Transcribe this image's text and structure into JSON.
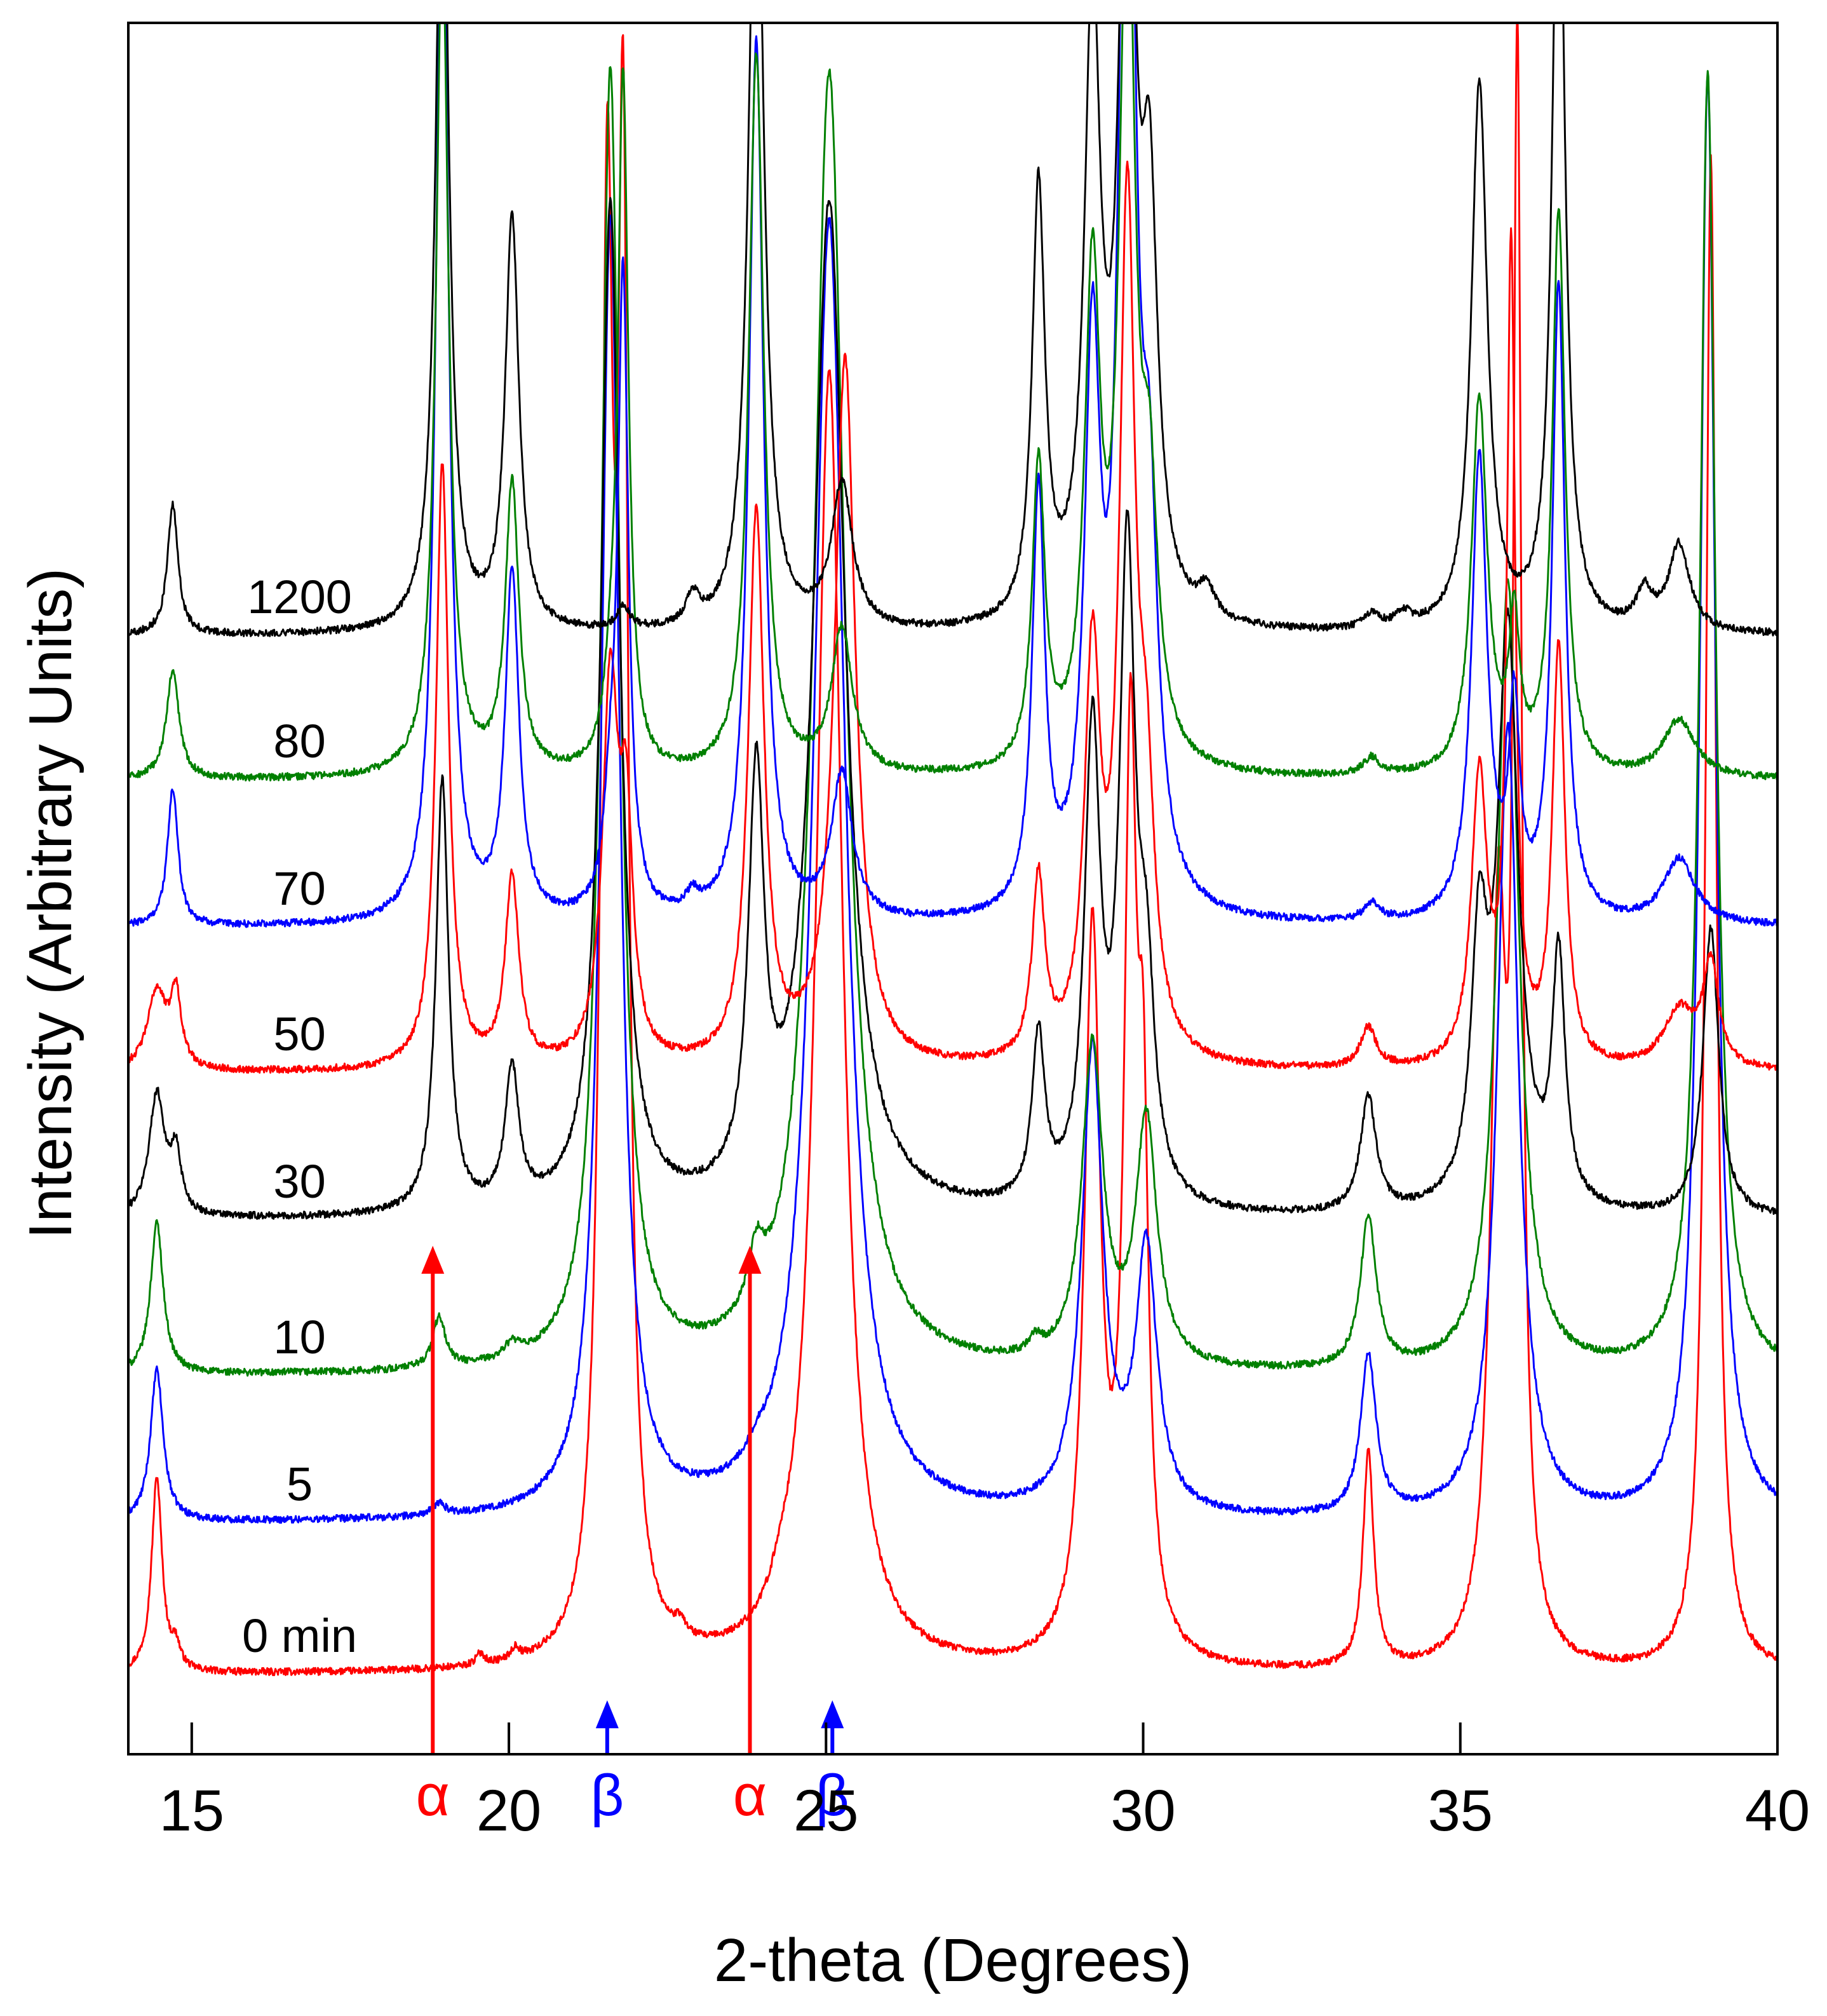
{
  "chart_data": {
    "type": "line",
    "title": "",
    "xlabel": "2-theta (Degrees)",
    "ylabel": "Intensity (Arbitrary Units)",
    "xlim": [
      14,
      40
    ],
    "ylim": [
      0,
      12
    ],
    "xticks": [
      15,
      20,
      25,
      30,
      35,
      40
    ],
    "grid": false,
    "note": "Stacked XRD patterns; each trace is vertically offset. Peak heights are in arbitrary units above each trace's baseline.",
    "series": [
      {
        "name": "0 min",
        "label": "0 min",
        "color": "#ff0000",
        "offset": 0.55,
        "peaks": [
          {
            "x": 14.45,
            "h": 1.35,
            "w": 0.1
          },
          {
            "x": 14.75,
            "h": 0.15,
            "w": 0.08
          },
          {
            "x": 19.55,
            "h": 0.08,
            "w": 0.08
          },
          {
            "x": 20.1,
            "h": 0.08,
            "w": 0.08
          },
          {
            "x": 21.55,
            "h": 9.5,
            "w": 0.12
          },
          {
            "x": 21.8,
            "h": 9.5,
            "w": 0.1
          },
          {
            "x": 22.7,
            "h": 0.1,
            "w": 0.12
          },
          {
            "x": 24.3,
            "h": 0.15,
            "w": 0.2
          },
          {
            "x": 25.05,
            "h": 9.0,
            "w": 0.25
          },
          {
            "x": 29.2,
            "h": 5.0,
            "w": 0.15
          },
          {
            "x": 29.8,
            "h": 6.0,
            "w": 0.12
          },
          {
            "x": 30.0,
            "h": 3.0,
            "w": 0.1
          },
          {
            "x": 33.55,
            "h": 1.5,
            "w": 0.1
          },
          {
            "x": 35.6,
            "h": 5.0,
            "w": 0.15
          },
          {
            "x": 35.9,
            "h": 10.5,
            "w": 0.08
          },
          {
            "x": 38.95,
            "h": 10.5,
            "w": 0.1
          }
        ]
      },
      {
        "name": "5",
        "label": "5",
        "color": "#0000ff",
        "offset": 1.6,
        "peaks": [
          {
            "x": 14.45,
            "h": 1.05,
            "w": 0.12
          },
          {
            "x": 18.9,
            "h": 0.08,
            "w": 0.12
          },
          {
            "x": 21.6,
            "h": 9.0,
            "w": 0.18
          },
          {
            "x": 23.9,
            "h": 0.08,
            "w": 0.15
          },
          {
            "x": 25.05,
            "h": 9.0,
            "w": 0.3
          },
          {
            "x": 29.2,
            "h": 3.2,
            "w": 0.2
          },
          {
            "x": 30.05,
            "h": 1.8,
            "w": 0.2
          },
          {
            "x": 33.55,
            "h": 1.1,
            "w": 0.15
          },
          {
            "x": 35.75,
            "h": 5.5,
            "w": 0.2
          },
          {
            "x": 38.9,
            "h": 10.0,
            "w": 0.15
          }
        ]
      },
      {
        "name": "10",
        "label": "10",
        "color": "#008000",
        "offset": 2.62,
        "peaks": [
          {
            "x": 14.45,
            "h": 1.05,
            "w": 0.12
          },
          {
            "x": 18.9,
            "h": 0.35,
            "w": 0.12
          },
          {
            "x": 20.05,
            "h": 0.1,
            "w": 0.15
          },
          {
            "x": 21.6,
            "h": 9.0,
            "w": 0.18
          },
          {
            "x": 23.9,
            "h": 0.4,
            "w": 0.15
          },
          {
            "x": 25.05,
            "h": 9.0,
            "w": 0.3
          },
          {
            "x": 28.3,
            "h": 0.1,
            "w": 0.12
          },
          {
            "x": 29.2,
            "h": 2.2,
            "w": 0.2
          },
          {
            "x": 30.05,
            "h": 1.7,
            "w": 0.2
          },
          {
            "x": 33.55,
            "h": 1.05,
            "w": 0.15
          },
          {
            "x": 35.75,
            "h": 5.5,
            "w": 0.2
          },
          {
            "x": 38.9,
            "h": 9.0,
            "w": 0.15
          }
        ]
      },
      {
        "name": "30",
        "label": "30",
        "color": "#000000",
        "offset": 3.7,
        "peaks": [
          {
            "x": 14.45,
            "h": 0.85,
            "w": 0.15
          },
          {
            "x": 14.75,
            "h": 0.4,
            "w": 0.1
          },
          {
            "x": 18.95,
            "h": 3.0,
            "w": 0.12
          },
          {
            "x": 20.05,
            "h": 0.95,
            "w": 0.13
          },
          {
            "x": 21.6,
            "h": 7.0,
            "w": 0.18
          },
          {
            "x": 23.9,
            "h": 2.8,
            "w": 0.15
          },
          {
            "x": 25.05,
            "h": 7.0,
            "w": 0.3
          },
          {
            "x": 28.35,
            "h": 1.15,
            "w": 0.12
          },
          {
            "x": 29.2,
            "h": 3.2,
            "w": 0.15
          },
          {
            "x": 29.75,
            "h": 4.4,
            "w": 0.15
          },
          {
            "x": 30.05,
            "h": 1.3,
            "w": 0.15
          },
          {
            "x": 33.55,
            "h": 0.8,
            "w": 0.15
          },
          {
            "x": 35.3,
            "h": 1.7,
            "w": 0.15
          },
          {
            "x": 35.75,
            "h": 4.0,
            "w": 0.2
          },
          {
            "x": 36.55,
            "h": 1.7,
            "w": 0.12
          },
          {
            "x": 38.95,
            "h": 2.0,
            "w": 0.15
          }
        ]
      },
      {
        "name": "50",
        "label": "50",
        "color": "#ff0000",
        "offset": 4.72,
        "peaks": [
          {
            "x": 14.45,
            "h": 0.55,
            "w": 0.18
          },
          {
            "x": 14.75,
            "h": 0.5,
            "w": 0.1
          },
          {
            "x": 18.95,
            "h": 4.2,
            "w": 0.12
          },
          {
            "x": 20.05,
            "h": 1.3,
            "w": 0.13
          },
          {
            "x": 21.6,
            "h": 2.6,
            "w": 0.15
          },
          {
            "x": 21.85,
            "h": 1.5,
            "w": 0.12
          },
          {
            "x": 23.9,
            "h": 3.8,
            "w": 0.15
          },
          {
            "x": 25.3,
            "h": 4.9,
            "w": 0.2
          },
          {
            "x": 28.35,
            "h": 1.25,
            "w": 0.12
          },
          {
            "x": 29.2,
            "h": 2.7,
            "w": 0.15
          },
          {
            "x": 29.75,
            "h": 5.8,
            "w": 0.15
          },
          {
            "x": 30.05,
            "h": 1.5,
            "w": 0.15
          },
          {
            "x": 33.55,
            "h": 0.28,
            "w": 0.15
          },
          {
            "x": 35.3,
            "h": 2.0,
            "w": 0.15
          },
          {
            "x": 35.8,
            "h": 5.6,
            "w": 0.08
          },
          {
            "x": 36.55,
            "h": 2.9,
            "w": 0.12
          },
          {
            "x": 38.45,
            "h": 0.4,
            "w": 0.3
          },
          {
            "x": 38.95,
            "h": 0.7,
            "w": 0.15
          }
        ]
      },
      {
        "name": "70",
        "label": "70",
        "color": "#0000ff",
        "offset": 5.73,
        "peaks": [
          {
            "x": 14.7,
            "h": 0.95,
            "w": 0.1
          },
          {
            "x": 18.95,
            "h": 7.5,
            "w": 0.12
          },
          {
            "x": 20.05,
            "h": 2.4,
            "w": 0.13
          },
          {
            "x": 21.6,
            "h": 0.6,
            "w": 0.12
          },
          {
            "x": 21.8,
            "h": 4.4,
            "w": 0.1
          },
          {
            "x": 22.9,
            "h": 0.12,
            "w": 0.12
          },
          {
            "x": 23.9,
            "h": 6.1,
            "w": 0.14
          },
          {
            "x": 25.25,
            "h": 1.0,
            "w": 0.2
          },
          {
            "x": 28.35,
            "h": 2.9,
            "w": 0.12
          },
          {
            "x": 29.2,
            "h": 3.7,
            "w": 0.15
          },
          {
            "x": 29.75,
            "h": 9.0,
            "w": 0.15
          },
          {
            "x": 30.1,
            "h": 2.2,
            "w": 0.15
          },
          {
            "x": 33.6,
            "h": 0.12,
            "w": 0.15
          },
          {
            "x": 35.3,
            "h": 3.2,
            "w": 0.15
          },
          {
            "x": 35.85,
            "h": 1.4,
            "w": 0.1
          },
          {
            "x": 36.55,
            "h": 4.4,
            "w": 0.12
          },
          {
            "x": 38.45,
            "h": 0.45,
            "w": 0.3
          }
        ]
      },
      {
        "name": "80",
        "label": "80",
        "color": "#008000",
        "offset": 6.75,
        "peaks": [
          {
            "x": 14.7,
            "h": 0.75,
            "w": 0.12
          },
          {
            "x": 18.95,
            "h": 5.8,
            "w": 0.12
          },
          {
            "x": 20.05,
            "h": 2.0,
            "w": 0.13
          },
          {
            "x": 21.6,
            "h": 0.35,
            "w": 0.12
          },
          {
            "x": 21.8,
            "h": 4.8,
            "w": 0.1
          },
          {
            "x": 23.9,
            "h": 5.0,
            "w": 0.14
          },
          {
            "x": 25.25,
            "h": 1.0,
            "w": 0.2
          },
          {
            "x": 28.35,
            "h": 2.1,
            "w": 0.12
          },
          {
            "x": 29.2,
            "h": 3.3,
            "w": 0.15
          },
          {
            "x": 29.75,
            "h": 6.0,
            "w": 0.15
          },
          {
            "x": 30.1,
            "h": 1.6,
            "w": 0.15
          },
          {
            "x": 33.6,
            "h": 0.12,
            "w": 0.15
          },
          {
            "x": 35.3,
            "h": 2.6,
            "w": 0.15
          },
          {
            "x": 35.85,
            "h": 1.0,
            "w": 0.1
          },
          {
            "x": 36.55,
            "h": 3.9,
            "w": 0.12
          },
          {
            "x": 38.45,
            "h": 0.4,
            "w": 0.3
          }
        ]
      },
      {
        "name": "1200",
        "label": "1200",
        "color": "#000000",
        "offset": 7.75,
        "peaks": [
          {
            "x": 14.7,
            "h": 0.9,
            "w": 0.1
          },
          {
            "x": 18.95,
            "h": 6.0,
            "w": 0.12
          },
          {
            "x": 20.05,
            "h": 2.85,
            "w": 0.13
          },
          {
            "x": 21.8,
            "h": 0.15,
            "w": 0.12
          },
          {
            "x": 22.9,
            "h": 0.2,
            "w": 0.12
          },
          {
            "x": 23.9,
            "h": 6.0,
            "w": 0.14
          },
          {
            "x": 25.25,
            "h": 1.0,
            "w": 0.2
          },
          {
            "x": 28.35,
            "h": 3.0,
            "w": 0.12
          },
          {
            "x": 29.2,
            "h": 4.2,
            "w": 0.15
          },
          {
            "x": 29.75,
            "h": 6.0,
            "w": 0.15
          },
          {
            "x": 30.1,
            "h": 2.6,
            "w": 0.15
          },
          {
            "x": 31.0,
            "h": 0.2,
            "w": 0.15
          },
          {
            "x": 33.6,
            "h": 0.1,
            "w": 0.15
          },
          {
            "x": 34.1,
            "h": 0.1,
            "w": 0.15
          },
          {
            "x": 35.3,
            "h": 3.8,
            "w": 0.15
          },
          {
            "x": 36.55,
            "h": 5.8,
            "w": 0.12
          },
          {
            "x": 37.9,
            "h": 0.25,
            "w": 0.15
          },
          {
            "x": 38.45,
            "h": 0.6,
            "w": 0.2
          }
        ]
      }
    ],
    "annotations": [
      {
        "label": "α",
        "x": 18.8,
        "color": "#ff0000"
      },
      {
        "label": "β",
        "x": 21.55,
        "color": "#0000ff"
      },
      {
        "label": "α",
        "x": 23.8,
        "color": "#ff0000"
      },
      {
        "label": "β",
        "x": 25.1,
        "color": "#0000ff"
      }
    ]
  }
}
